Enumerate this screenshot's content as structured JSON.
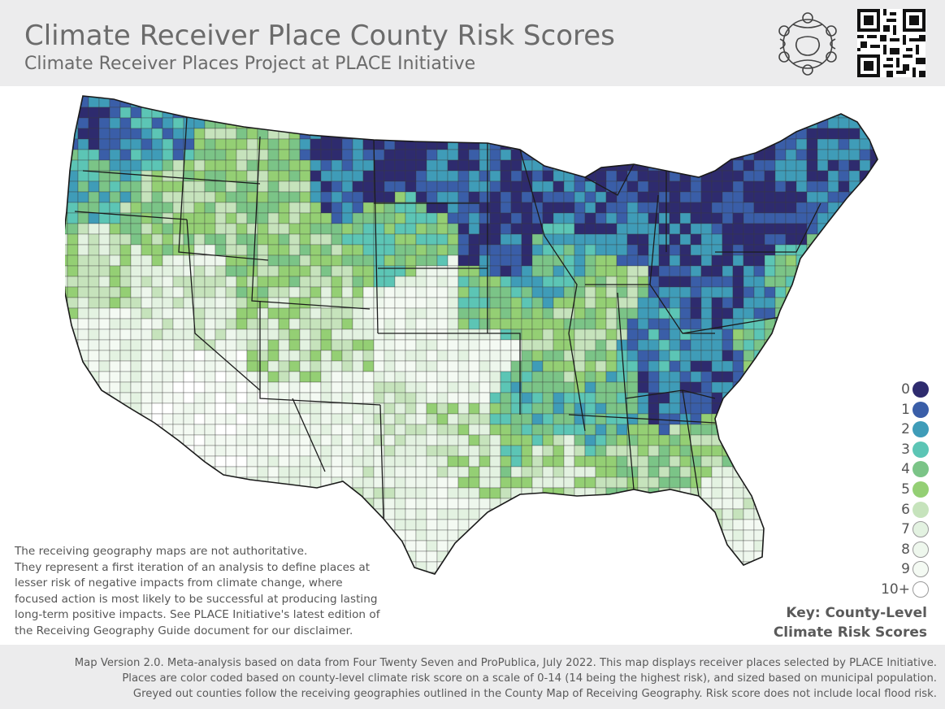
{
  "header": {
    "title": "Climate Receiver Place County Risk Scores",
    "subtitle": "Climate Receiver Places Project at PLACE Initiative"
  },
  "map": {
    "subject": "contiguous-united-states-counties",
    "scale_colors": [
      "#2e2b6e",
      "#3a5ea8",
      "#3f9cb8",
      "#5cc5b5",
      "#7bc487",
      "#94cf74",
      "#c6e3bc",
      "#e3f2e1",
      "#eef7ed",
      "#f4faf3",
      "#ffffff"
    ]
  },
  "disclaimer": {
    "lines": [
      "The receiving geography maps are not authoritative.",
      "They represent a first iteration of an analysis to define places at",
      "lesser risk of negative impacts from climate change, where",
      "focused action is most likely to be successful at producing lasting",
      "long-term positive impacts. See PLACE Initiative's latest edition of",
      "the Receiving Geography Guide document for our disclaimer."
    ]
  },
  "legend": {
    "items": [
      {
        "label": "0",
        "color": "#2e2b6e"
      },
      {
        "label": "1",
        "color": "#3a5ea8"
      },
      {
        "label": "2",
        "color": "#3f9cb8"
      },
      {
        "label": "3",
        "color": "#5cc5b5"
      },
      {
        "label": "4",
        "color": "#7bc487"
      },
      {
        "label": "5",
        "color": "#94cf74"
      },
      {
        "label": "6",
        "color": "#c6e3bc"
      },
      {
        "label": "7",
        "color": "#e3f2e1"
      },
      {
        "label": "8",
        "color": "#eef7ed"
      },
      {
        "label": "9",
        "color": "#f4faf3"
      },
      {
        "label": "10+",
        "color": "#ffffff"
      }
    ],
    "title_line1": "Key: County-Level",
    "title_line2": "Climate Risk Scores"
  },
  "footer": {
    "lines": [
      "Map Version 2.0. Meta-analysis based on data from Four Twenty Seven and ProPublica, July 2022. This map displays receiver places selected by PLACE Initiative.",
      "Places are color coded based on county-level climate risk score on a scale of 0-14 (14 being the highest risk), and sized based on municipal population.",
      "Greyed out counties follow the receiving geographies outlined in the County Map of Receiving Geography. Risk score does not include local flood risk."
    ]
  }
}
